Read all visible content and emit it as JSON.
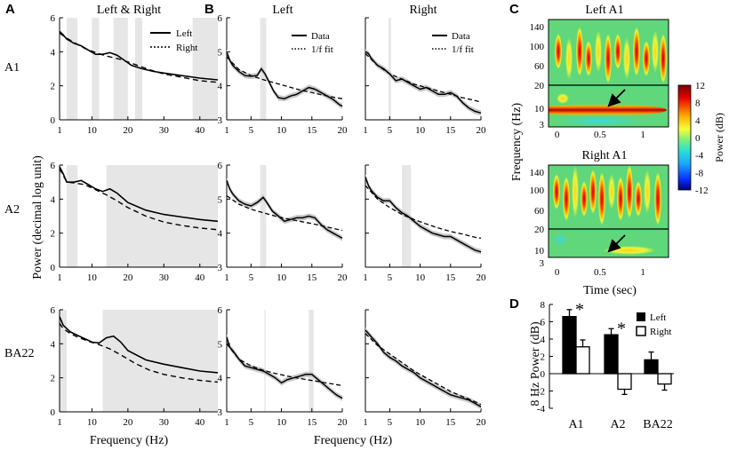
{
  "panel_letters": [
    "A",
    "B",
    "C",
    "D"
  ],
  "region_names": [
    "A1",
    "A2",
    "BA22"
  ],
  "titles": {
    "A": "Left & Right",
    "B_left": "Left",
    "B_right": "Right",
    "C_top": "Left A1",
    "C_bottom": "Right A1"
  },
  "legends": {
    "A": [
      "Left",
      "Right"
    ],
    "B": [
      "Data",
      "1/f fit"
    ],
    "D": [
      "Left",
      "Right"
    ]
  },
  "axis_labels": {
    "power": "Power (decimal log unit)",
    "freq": "Frequency (Hz)",
    "c_y": "Frequency (Hz)",
    "c_x": "Time (sec)",
    "colorbar": "Power (dB)",
    "d_y": "8 Hz Power (dB)"
  },
  "colors": {
    "shade": "#e6e6e6",
    "spectro_bg": "#5fd77a",
    "bar_left": "#000000",
    "bar_right": "#ffffff"
  },
  "chart_data": [
    {
      "id": "A",
      "type": "line",
      "title": "Left & Right",
      "xlabel": "Frequency (Hz)",
      "ylabel": "Power (decimal log unit)",
      "xlim": [
        1,
        45
      ],
      "xticks": [
        1,
        10,
        20,
        30,
        40
      ],
      "legend": [
        "Left",
        "Right"
      ],
      "rows": [
        {
          "region": "A1",
          "ylim": [
            0,
            6
          ],
          "yticks": [
            0,
            2,
            4,
            6
          ],
          "shaded": [
            [
              3,
              6
            ],
            [
              10,
              12
            ],
            [
              16,
              20
            ],
            [
              22,
              24
            ],
            [
              38,
              45
            ]
          ],
          "series": [
            {
              "name": "Left",
              "style": "solid",
              "x": [
                1,
                2,
                3,
                5,
                7,
                9,
                11,
                13,
                15,
                17,
                19,
                21,
                24,
                27,
                30,
                35,
                40,
                45
              ],
              "y": [
                5.2,
                5.0,
                4.75,
                4.5,
                4.35,
                4.1,
                3.85,
                3.85,
                3.95,
                3.8,
                3.5,
                3.2,
                3.0,
                2.85,
                2.75,
                2.6,
                2.45,
                2.35
              ]
            },
            {
              "name": "Right",
              "style": "dashed",
              "x": [
                1,
                3,
                5,
                8,
                11,
                14,
                18,
                22,
                26,
                30,
                35,
                40,
                45
              ],
              "y": [
                5.1,
                4.8,
                4.55,
                4.2,
                3.95,
                3.75,
                3.55,
                3.25,
                2.95,
                2.7,
                2.5,
                2.3,
                2.2
              ]
            }
          ]
        },
        {
          "region": "A2",
          "ylim": [
            0,
            6
          ],
          "yticks": [
            0,
            2,
            4,
            6
          ],
          "shaded": [
            [
              3,
              6
            ],
            [
              14,
              45
            ]
          ],
          "series": [
            {
              "name": "Left",
              "style": "solid",
              "x": [
                1,
                2,
                3,
                5,
                7,
                9,
                11,
                13,
                15,
                17,
                20,
                25,
                30,
                35,
                40,
                45
              ],
              "y": [
                5.9,
                5.5,
                5.0,
                5.0,
                5.1,
                4.85,
                4.6,
                4.45,
                4.6,
                4.35,
                3.8,
                3.35,
                3.1,
                2.95,
                2.8,
                2.7
              ]
            },
            {
              "name": "Right",
              "style": "dashed",
              "x": [
                1,
                2,
                3,
                5,
                8,
                11,
                14,
                17,
                20,
                25,
                30,
                35,
                40,
                45
              ],
              "y": [
                5.8,
                5.4,
                5.0,
                4.95,
                4.85,
                4.55,
                4.25,
                3.9,
                3.5,
                3.0,
                2.65,
                2.45,
                2.3,
                2.2
              ]
            }
          ]
        },
        {
          "region": "BA22",
          "ylim": [
            0,
            6
          ],
          "yticks": [
            0,
            2,
            4,
            6
          ],
          "shaded": [
            [
              1,
              3
            ],
            [
              13,
              45
            ]
          ],
          "series": [
            {
              "name": "Left",
              "style": "solid",
              "x": [
                1,
                2,
                4,
                6,
                8,
                10,
                12,
                14,
                16,
                18,
                20,
                25,
                30,
                35,
                40,
                45
              ],
              "y": [
                5.6,
                5.1,
                4.7,
                4.5,
                4.3,
                4.1,
                4.05,
                4.35,
                4.45,
                4.1,
                3.6,
                3.05,
                2.8,
                2.6,
                2.4,
                2.3
              ]
            },
            {
              "name": "Right",
              "style": "dashed",
              "x": [
                1,
                2,
                4,
                6,
                9,
                12,
                15,
                18,
                22,
                26,
                30,
                35,
                40,
                45
              ],
              "y": [
                5.2,
                4.9,
                4.6,
                4.4,
                4.15,
                3.95,
                3.7,
                3.35,
                2.85,
                2.45,
                2.2,
                2.0,
                1.85,
                1.75
              ]
            }
          ]
        }
      ]
    },
    {
      "id": "B",
      "type": "line",
      "columns": [
        "Left",
        "Right"
      ],
      "xlabel": "Frequency (Hz)",
      "xlim": [
        1,
        20
      ],
      "xticks": [
        1,
        5,
        10,
        15,
        20
      ],
      "ylim": [
        3,
        6
      ],
      "yticks": [
        3,
        4,
        5,
        6
      ],
      "legend": [
        "Data",
        "1/f fit"
      ],
      "panels": [
        {
          "region": "A1",
          "column": "Left",
          "shaded": [
            [
              6.5,
              7.5
            ]
          ],
          "data": {
            "x": [
              1,
              1.5,
              2,
              3,
              4,
              5,
              6,
              6.7,
              7.3,
              8,
              8.7,
              9.5,
              10.5,
              11.5,
              12.5,
              13.5,
              14.5,
              15.5,
              16.5,
              17.5,
              18.5,
              19.5,
              20
            ],
            "y": [
              5.0,
              4.75,
              4.6,
              4.42,
              4.3,
              4.28,
              4.3,
              4.5,
              4.35,
              4.1,
              3.85,
              3.65,
              3.62,
              3.7,
              3.75,
              3.85,
              3.95,
              3.9,
              3.8,
              3.7,
              3.6,
              3.45,
              3.4
            ]
          },
          "fit": {
            "x": [
              1,
              3,
              5,
              7,
              9,
              11,
              13,
              15,
              17,
              19,
              20
            ],
            "y": [
              4.85,
              4.48,
              4.3,
              4.18,
              4.08,
              3.98,
              3.88,
              3.8,
              3.72,
              3.65,
              3.62
            ]
          },
          "band": true
        },
        {
          "region": "A1",
          "column": "Right",
          "shaded": [
            [
              4.8,
              5.2
            ]
          ],
          "data": {
            "x": [
              1,
              1.5,
              2,
              3,
              4,
              5,
              6,
              7,
              8,
              9,
              10,
              11,
              12,
              13,
              14,
              15,
              16,
              17,
              18,
              19,
              20
            ],
            "y": [
              5.0,
              4.95,
              4.8,
              4.6,
              4.5,
              4.35,
              4.15,
              4.2,
              4.1,
              4.0,
              3.9,
              3.95,
              3.85,
              3.75,
              3.75,
              3.8,
              3.7,
              3.5,
              3.35,
              3.25,
              3.2
            ]
          },
          "fit": {
            "x": [
              1,
              3,
              5,
              7,
              9,
              11,
              13,
              15,
              17,
              19,
              20
            ],
            "y": [
              4.95,
              4.6,
              4.35,
              4.2,
              4.05,
              3.95,
              3.85,
              3.75,
              3.65,
              3.57,
              3.52
            ]
          },
          "band": true
        },
        {
          "region": "A2",
          "column": "Left",
          "shaded": [
            [
              6.5,
              7.5
            ]
          ],
          "data": {
            "x": [
              1,
              1.5,
              2,
              3,
              4,
              5,
              6,
              7,
              7.6,
              8.5,
              9.5,
              10.5,
              11.5,
              12.5,
              13.5,
              14.5,
              15.5,
              16.5,
              17.5,
              18.5,
              19.5,
              20
            ],
            "y": [
              5.55,
              5.3,
              5.15,
              4.95,
              4.85,
              4.8,
              4.9,
              5.05,
              4.9,
              4.65,
              4.5,
              4.35,
              4.4,
              4.45,
              4.45,
              4.5,
              4.45,
              4.25,
              4.1,
              4.0,
              3.9,
              3.85
            ]
          },
          "fit": {
            "x": [
              1,
              3,
              5,
              7,
              9,
              11,
              13,
              15,
              17,
              19,
              20
            ],
            "y": [
              5.1,
              4.85,
              4.7,
              4.6,
              4.5,
              4.42,
              4.35,
              4.28,
              4.2,
              4.12,
              4.08
            ]
          },
          "band": true
        },
        {
          "region": "A2",
          "column": "Right",
          "shaded": [
            [
              7,
              8.5
            ]
          ],
          "data": {
            "x": [
              1,
              1.5,
              2,
              3,
              4,
              5,
              6,
              7,
              8,
              9,
              10,
              11,
              12,
              13,
              14,
              15,
              16,
              17,
              18,
              19,
              20
            ],
            "y": [
              5.65,
              5.4,
              5.25,
              5.05,
              4.95,
              4.95,
              4.75,
              4.6,
              4.5,
              4.35,
              4.2,
              4.1,
              4.0,
              3.95,
              3.9,
              3.9,
              3.8,
              3.7,
              3.6,
              3.5,
              3.45
            ]
          },
          "fit": {
            "x": [
              1,
              3,
              5,
              7,
              9,
              11,
              13,
              15,
              17,
              19,
              20
            ],
            "y": [
              5.4,
              5.0,
              4.75,
              4.55,
              4.4,
              4.27,
              4.15,
              4.05,
              3.97,
              3.88,
              3.85
            ]
          },
          "band": true
        },
        {
          "region": "BA22",
          "column": "Left",
          "shaded": [
            [
              7.2,
              7.4
            ],
            [
              14.5,
              15.3
            ]
          ],
          "data": {
            "x": [
              1,
              1.5,
              2,
              3,
              4,
              5,
              6,
              7,
              8,
              9,
              10,
              11,
              12,
              13,
              14,
              15,
              16,
              17,
              18,
              19,
              20
            ],
            "y": [
              5.2,
              4.9,
              4.8,
              4.55,
              4.35,
              4.3,
              4.25,
              4.2,
              4.1,
              4.0,
              3.85,
              3.95,
              4.0,
              4.05,
              4.1,
              4.1,
              3.95,
              3.8,
              3.65,
              3.5,
              3.4
            ]
          },
          "fit": {
            "x": [
              1,
              3,
              5,
              7,
              9,
              11,
              13,
              15,
              17,
              19,
              20
            ],
            "y": [
              5.0,
              4.55,
              4.35,
              4.22,
              4.13,
              4.05,
              3.98,
              3.92,
              3.86,
              3.8,
              3.77
            ]
          },
          "band": true
        },
        {
          "region": "BA22",
          "column": "Right",
          "shaded": [],
          "data": {
            "x": [
              1,
              1.5,
              2,
              3,
              4,
              5,
              6,
              7,
              8,
              9,
              10,
              11,
              12,
              13,
              14,
              15,
              16,
              17,
              18,
              19,
              20
            ],
            "y": [
              5.4,
              5.3,
              5.2,
              5.0,
              4.75,
              4.6,
              4.5,
              4.35,
              4.25,
              4.15,
              4.0,
              3.9,
              3.8,
              3.7,
              3.6,
              3.5,
              3.45,
              3.4,
              3.35,
              3.25,
              3.15
            ]
          },
          "fit": {
            "x": [
              1,
              3,
              5,
              7,
              9,
              11,
              13,
              15,
              17,
              19,
              20
            ],
            "y": [
              5.3,
              4.95,
              4.7,
              4.45,
              4.2,
              4.0,
              3.8,
              3.6,
              3.45,
              3.3,
              3.22
            ]
          },
          "band": true
        }
      ]
    },
    {
      "id": "C",
      "type": "heatmap",
      "title_top": "Left A1",
      "title_bottom": "Right A1",
      "xlabel": "Time (sec)",
      "ylabel": "Frequency (Hz)",
      "xticks": [
        0,
        0.5,
        1
      ],
      "xlim": [
        -0.1,
        1.3
      ],
      "yticks_upper": [
        140,
        100,
        60,
        20
      ],
      "yticks_lower": [
        10,
        3
      ],
      "colorbar": {
        "label": "Power (dB)",
        "ticks": [
          12,
          8,
          4,
          0,
          -4,
          -8,
          -12
        ],
        "range": [
          -12,
          12
        ]
      }
    },
    {
      "id": "D",
      "type": "bar",
      "ylabel": "8 Hz Power (dB)",
      "categories": [
        "A1",
        "A2",
        "BA22"
      ],
      "ylim": [
        -4,
        8
      ],
      "yticks": [
        -4,
        -2,
        0,
        2,
        4,
        6,
        8
      ],
      "series": [
        {
          "name": "Left",
          "values": [
            6.6,
            4.5,
            1.6
          ],
          "errors": [
            0.8,
            0.7,
            0.9
          ]
        },
        {
          "name": "Right",
          "values": [
            3.1,
            -1.8,
            -1.2
          ],
          "errors": [
            0.8,
            0.6,
            0.7
          ]
        }
      ],
      "significance": [
        "*",
        "*",
        ""
      ]
    }
  ]
}
